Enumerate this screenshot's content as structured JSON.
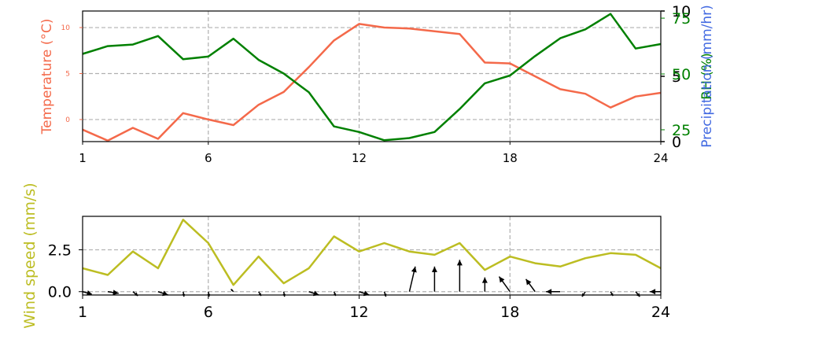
{
  "chart_data": [
    {
      "type": "line",
      "x": [
        1,
        2,
        3,
        4,
        5,
        6,
        7,
        8,
        9,
        10,
        11,
        12,
        13,
        14,
        15,
        16,
        17,
        18,
        19,
        20,
        21,
        22,
        23,
        24
      ],
      "xticks": [
        "1",
        "6",
        "12",
        "18",
        "24"
      ],
      "xlim": [
        1,
        24
      ],
      "grid": true,
      "series": [
        {
          "axis": "temperature",
          "color": "#f4694a",
          "values": [
            -1.1,
            -2.3,
            -0.9,
            -2.1,
            0.7,
            0.0,
            -0.6,
            1.6,
            3.0,
            5.7,
            8.6,
            10.4,
            10.0,
            9.9,
            9.6,
            9.3,
            6.2,
            6.1,
            4.7,
            3.3,
            2.8,
            1.3,
            2.5,
            2.9
          ]
        },
        {
          "axis": "humidity",
          "color": "#008000",
          "values": [
            59,
            62.5,
            63.2,
            67,
            56.6,
            57.8,
            65.8,
            56.3,
            50.2,
            41.8,
            26.5,
            24,
            20.3,
            21.3,
            24,
            34.3,
            45.8,
            49.3,
            58,
            66,
            70,
            76.9,
            61.4,
            63.4
          ]
        }
      ],
      "axes": {
        "temperature": {
          "label": "Temperature (°C)",
          "color": "#f4694a",
          "ylim": [
            -2.4,
            11.8
          ],
          "ticks": [
            "0",
            "5",
            "10"
          ]
        },
        "humidity": {
          "label": "RH (%)",
          "color": "#008000",
          "ylim": [
            19.7,
            78.2
          ],
          "ticks": [
            "25",
            "50",
            "75"
          ]
        },
        "precipitation": {
          "label": "Precipitation (mm/hr)",
          "color": "#4169e1",
          "ylim": [
            0,
            10
          ],
          "ticks": [
            "0",
            "5",
            "10"
          ]
        }
      }
    },
    {
      "type": "line",
      "x": [
        1,
        2,
        3,
        4,
        5,
        6,
        7,
        8,
        9,
        10,
        11,
        12,
        13,
        14,
        15,
        16,
        17,
        18,
        19,
        20,
        21,
        22,
        23,
        24
      ],
      "xticks": [
        "1",
        "6",
        "12",
        "18",
        "24"
      ],
      "xlim": [
        1,
        24
      ],
      "ylim": [
        -0.2,
        4.5
      ],
      "yticks": [
        "0.0",
        "2.5"
      ],
      "ylabel": "Wind speed (mm/s)",
      "ylabel_color": "#bcbd22",
      "grid": true,
      "series": [
        {
          "color": "#bcbd22",
          "values": [
            1.4,
            1.0,
            2.4,
            1.4,
            4.3,
            2.9,
            0.4,
            2.1,
            0.5,
            1.4,
            3.3,
            2.4,
            2.9,
            2.4,
            2.2,
            2.9,
            1.3,
            2.1,
            1.7,
            1.5,
            2.0,
            2.3,
            2.2,
            1.4
          ]
        }
      ],
      "wind_vectors": [
        [
          1,
          0.55,
          -0.15
        ],
        [
          2,
          0.65,
          -0.1
        ],
        [
          3,
          0.3,
          -0.25
        ],
        [
          4,
          0.6,
          -0.2
        ],
        [
          5,
          0.05,
          -0.3
        ],
        [
          6,
          0.05,
          -0.3
        ],
        [
          7,
          -0.15,
          0.15
        ],
        [
          8,
          0.15,
          -0.25
        ],
        [
          9,
          0.05,
          -0.3
        ],
        [
          10,
          0.6,
          -0.2
        ],
        [
          11,
          0.1,
          -0.25
        ],
        [
          12,
          0.6,
          -0.2
        ],
        [
          13,
          0.1,
          -0.3
        ],
        [
          14,
          0.35,
          1.5
        ],
        [
          15,
          0.0,
          1.5
        ],
        [
          16,
          0.0,
          1.9
        ],
        [
          17,
          0.0,
          0.85
        ],
        [
          18,
          -0.65,
          0.9
        ],
        [
          19,
          -0.55,
          0.75
        ],
        [
          20,
          -0.85,
          0.0
        ],
        [
          21,
          -0.2,
          -0.3
        ],
        [
          22,
          0.15,
          -0.25
        ],
        [
          23,
          0.25,
          -0.3
        ],
        [
          24,
          -0.65,
          0.0
        ]
      ]
    }
  ]
}
